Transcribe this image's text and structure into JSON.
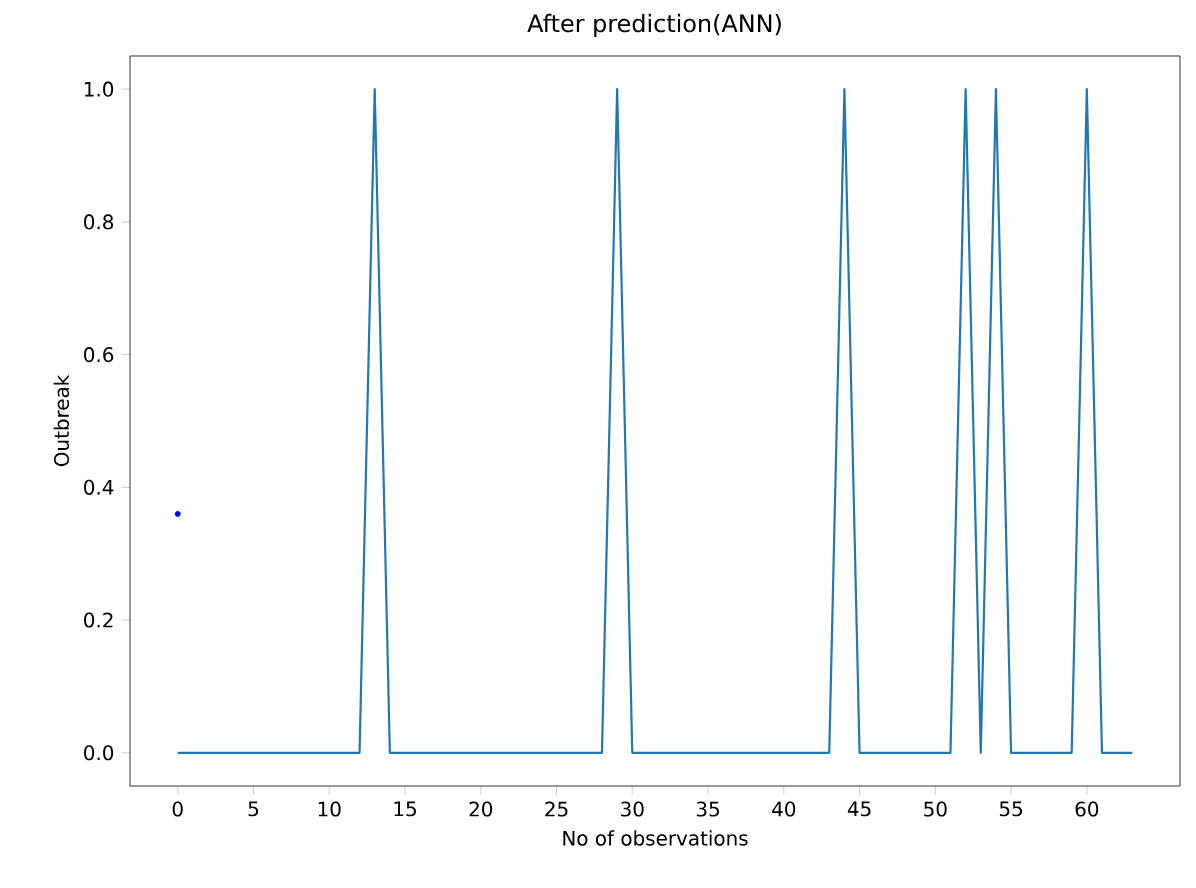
{
  "chart_data": {
    "type": "line",
    "title": "After prediction(ANN)",
    "xlabel": "No of observations",
    "ylabel": "Outbreak",
    "series": [
      {
        "color": "#1f77b4",
        "x": [
          0,
          1,
          2,
          3,
          4,
          5,
          6,
          7,
          8,
          9,
          10,
          11,
          12,
          13,
          14,
          15,
          16,
          17,
          18,
          19,
          20,
          21,
          22,
          23,
          24,
          25,
          26,
          27,
          28,
          29,
          30,
          31,
          32,
          33,
          34,
          35,
          36,
          37,
          38,
          39,
          40,
          41,
          42,
          43,
          44,
          45,
          46,
          47,
          48,
          49,
          50,
          51,
          52,
          53,
          54,
          55,
          56,
          57,
          58,
          59,
          60,
          61,
          62,
          63
        ],
        "values": [
          0,
          0,
          0,
          0,
          0,
          0,
          0,
          0,
          0,
          0,
          0,
          0,
          0,
          1,
          0,
          0,
          0,
          0,
          0,
          0,
          0,
          0,
          0,
          0,
          0,
          0,
          0,
          0,
          0,
          1,
          0,
          0,
          0,
          0,
          0,
          0,
          0,
          0,
          0,
          0,
          0,
          0,
          0,
          0,
          1,
          0,
          0,
          0,
          0,
          0,
          0,
          0,
          1,
          0,
          1,
          0,
          0,
          0,
          0,
          0,
          1,
          0,
          0,
          0
        ]
      },
      {
        "type": "scatter",
        "color": "#0000ff",
        "marker": "circle",
        "x": [
          0
        ],
        "values": [
          0.36
        ]
      }
    ],
    "xlim": [
      -3.15,
      66.15
    ],
    "ylim": [
      -0.05,
      1.05
    ],
    "xticks": [
      0,
      5,
      10,
      15,
      20,
      25,
      30,
      35,
      40,
      45,
      50,
      55,
      60
    ],
    "yticks": [
      {
        "value": 0,
        "label": "0.0"
      },
      {
        "value": 0.2,
        "label": "0.2"
      },
      {
        "value": 0.4,
        "label": "0.4"
      },
      {
        "value": 0.6,
        "label": "0.6"
      },
      {
        "value": 0.8,
        "label": "0.8"
      },
      {
        "value": 1,
        "label": "1.0"
      }
    ]
  }
}
